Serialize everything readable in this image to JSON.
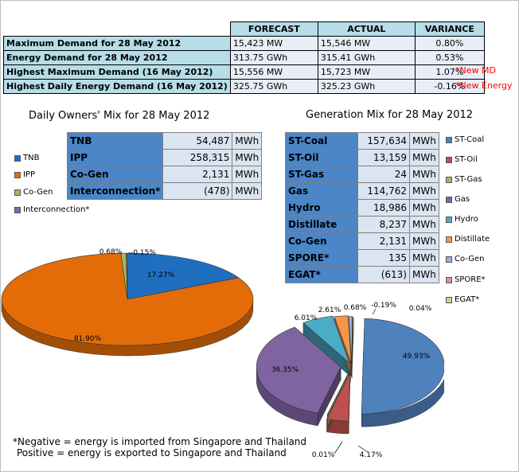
{
  "summary": {
    "headers": [
      "FORECAST",
      "ACTUAL",
      "VARIANCE"
    ],
    "rows": [
      {
        "label": "Maximum Demand for 28 May 2012",
        "forecast": "15,423  MW",
        "actual": "15,546  MW",
        "variance": "0.80%",
        "note": ""
      },
      {
        "label": "Energy Demand for 28 May 2012",
        "forecast": "313.75  GWh",
        "actual": "315.41  GWh",
        "variance": "0.53%",
        "note": ""
      },
      {
        "label": "Highest Maximum Demand (16 May 2012)",
        "forecast": "15,556  MW",
        "actual": "15,723  MW",
        "variance": "1.07%",
        "note": "*New MD"
      },
      {
        "label": "Highest Daily Energy Demand (16 May 2012)",
        "forecast": "325.75  GWh",
        "actual": "325.23  GWh",
        "variance": "-0.16%",
        "note": "*New Energy"
      }
    ]
  },
  "owners": {
    "title": "Daily Owners' Mix for 28 May 2012",
    "unit": "MWh",
    "rows": [
      {
        "name": "TNB",
        "value": "54,487"
      },
      {
        "name": "IPP",
        "value": "258,315"
      },
      {
        "name": "Co-Gen",
        "value": "2,131"
      },
      {
        "name": "Interconnection*",
        "value": "(478)"
      }
    ],
    "legend": [
      "TNB",
      "IPP",
      "Co-Gen",
      "Interconnection*"
    ]
  },
  "generation": {
    "title": "Generation Mix for 28 May 2012",
    "unit": "MWh",
    "rows": [
      {
        "name": "ST-Coal",
        "value": "157,634"
      },
      {
        "name": "ST-Oil",
        "value": "13,159"
      },
      {
        "name": "ST-Gas",
        "value": "24"
      },
      {
        "name": "Gas",
        "value": "114,762"
      },
      {
        "name": "Hydro",
        "value": "18,986"
      },
      {
        "name": "Distillate",
        "value": "8,237"
      },
      {
        "name": "Co-Gen",
        "value": "2,131"
      },
      {
        "name": "SPORE*",
        "value": "135"
      },
      {
        "name": "EGAT*",
        "value": "(613)"
      }
    ],
    "legend": [
      "ST-Coal",
      "ST-Oil",
      "ST-Gas",
      "Gas",
      "Hydro",
      "Distillate",
      "Co-Gen",
      "SPORE*",
      "EGAT*"
    ]
  },
  "footnote": {
    "line1": "*Negative = energy is imported from Singapore and Thailand",
    "line2": "Positive = energy is exported to Singapore and Thailand"
  },
  "chart_data": [
    {
      "type": "pie",
      "title": "Daily Owners' Mix for 28 May 2012",
      "categories": [
        "TNB",
        "IPP",
        "Co-Gen",
        "Interconnection*"
      ],
      "values": [
        17.27,
        81.9,
        0.68,
        -0.15
      ],
      "labels": [
        "17.27%",
        "81.90%",
        "0.68%",
        "-0.15%"
      ],
      "colors": [
        "#1f6ec0",
        "#e36c09",
        "#9bbb59",
        "#8064a2"
      ],
      "legend_position": "left"
    },
    {
      "type": "pie",
      "title": "Generation Mix for 28 May 2012",
      "categories": [
        "ST-Coal",
        "ST-Oil",
        "ST-Gas",
        "Gas",
        "Hydro",
        "Distillate",
        "Co-Gen",
        "SPORE*",
        "EGAT*"
      ],
      "values": [
        49.93,
        4.17,
        0.01,
        36.35,
        6.01,
        2.61,
        0.68,
        0.04,
        -0.19
      ],
      "labels": [
        "49.93%",
        "4.17%",
        "0.01%",
        "36.35%",
        "6.01%",
        "2.61%",
        "0.68%",
        "0.04%",
        "-0.19%"
      ],
      "colors": [
        "#4f81bd",
        "#c0504d",
        "#9bbb59",
        "#8064a2",
        "#4bacc6",
        "#f79646",
        "#95b3d7",
        "#d99694",
        "#c3d69b"
      ],
      "legend_position": "right"
    }
  ]
}
